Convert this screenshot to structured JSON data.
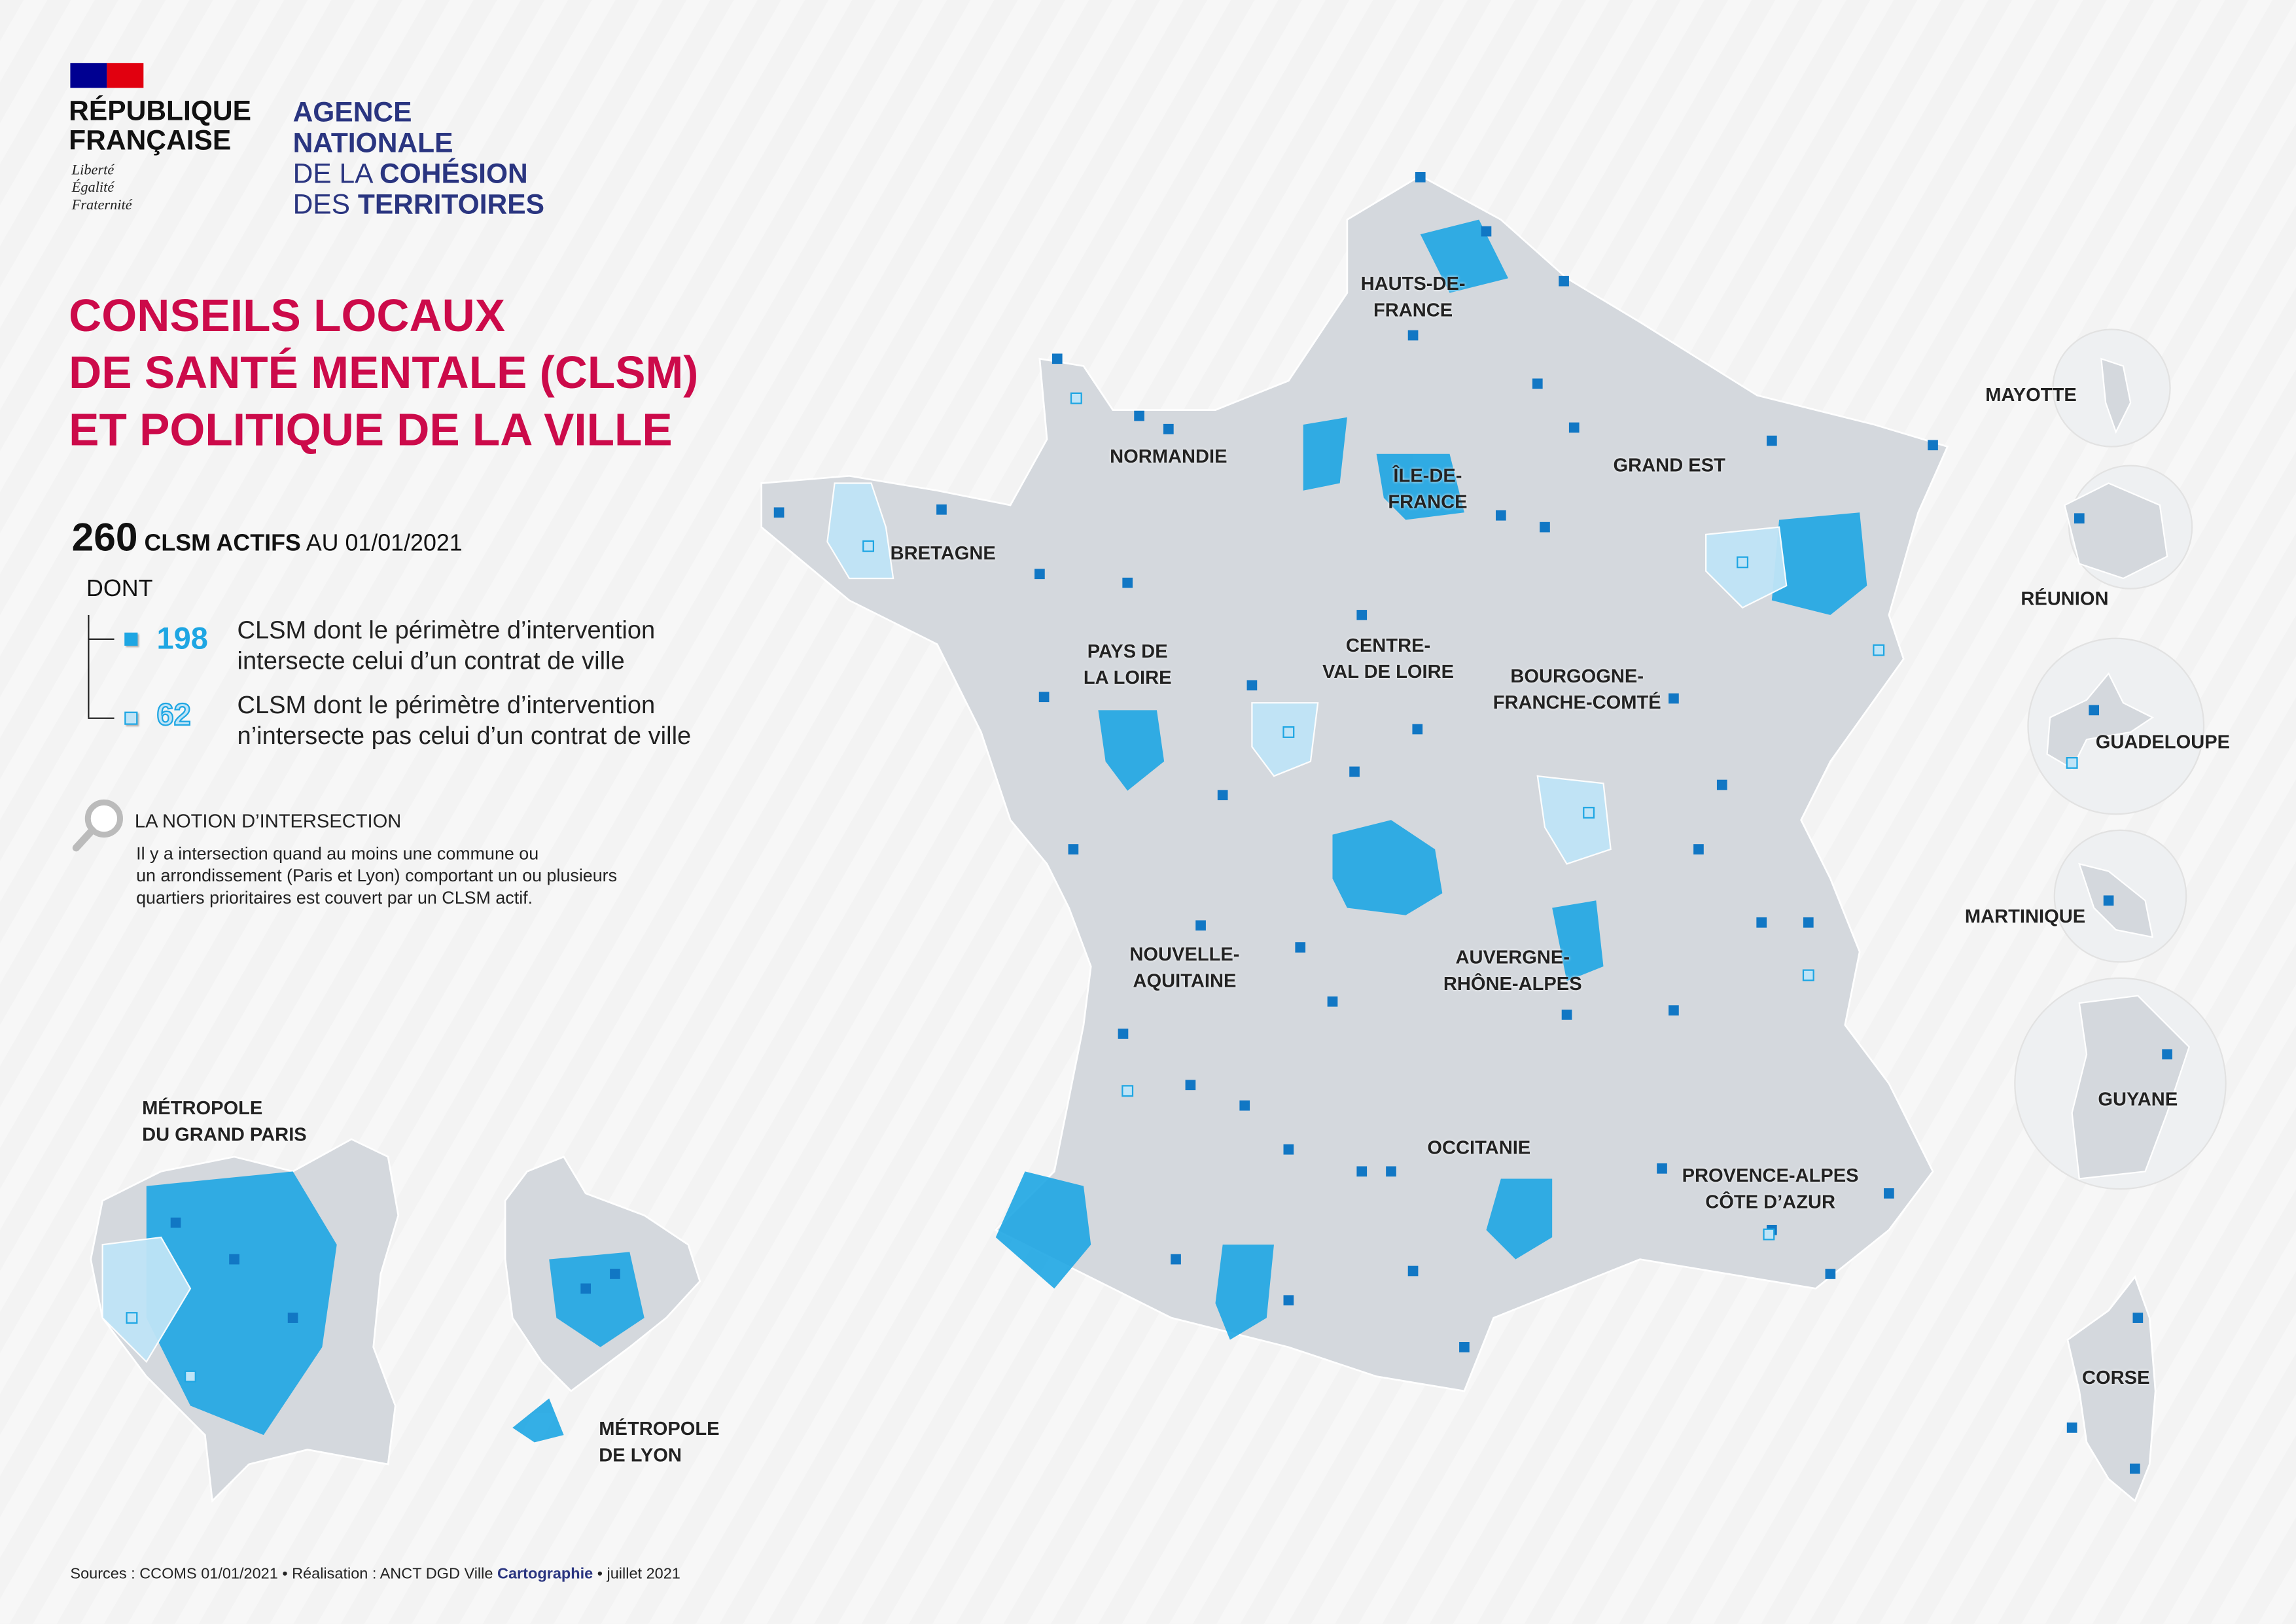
{
  "logos": {
    "republique": [
      "RÉPUBLIQUE",
      "FRANÇAISE"
    ],
    "devise": [
      "Liberté",
      "Égalité",
      "Fraternité"
    ],
    "anct": {
      "line1": "AGENCE",
      "line2": "NATIONALE",
      "line3a": "DE LA",
      "line3b": "COHÉSION",
      "line4a": "DES",
      "line4b": "TERRITOIRES"
    }
  },
  "title": [
    "CONSEILS LOCAUX",
    "DE SANTÉ MENTALE (CLSM)",
    "ET POLITIQUE DE LA VILLE"
  ],
  "summary": {
    "total": "260",
    "label_bold": "CLSM ACTIFS",
    "label": "AU 01/01/2021",
    "dont": "DONT"
  },
  "legend": [
    {
      "count": "198",
      "color": "#1ea6e3",
      "text": [
        "CLSM dont le périmètre d’intervention",
        "intersecte celui d’un contrat de ville"
      ]
    },
    {
      "count": "62",
      "color": "#bfe4f7",
      "text": [
        "CLSM dont le périmètre d’intervention",
        "n’intersecte pas celui d’un contrat de ville"
      ]
    }
  ],
  "notion": {
    "heading": "LA NOTION D’INTERSECTION",
    "text": [
      "Il y a intersection quand au moins une commune ou",
      "un arrondissement (Paris et Lyon) comportant un ou plusieurs",
      "quartiers prioritaires est couvert par un CLSM actif."
    ]
  },
  "regions": {
    "hdf": [
      "HAUTS-DE-",
      "FRANCE"
    ],
    "normandie": [
      "NORMANDIE"
    ],
    "idf": [
      "ÎLE-DE-",
      "FRANCE"
    ],
    "grand_est": [
      "GRAND EST"
    ],
    "bretagne": [
      "BRETAGNE"
    ],
    "pdl": [
      "PAYS DE",
      "LA LOIRE"
    ],
    "cvl": [
      "CENTRE-",
      "VAL DE LOIRE"
    ],
    "bfc": [
      "BOURGOGNE-",
      "FRANCHE-COMTÉ"
    ],
    "na": [
      "NOUVELLE-",
      "AQUITAINE"
    ],
    "ara": [
      "AUVERGNE-",
      "RHÔNE-ALPES"
    ],
    "occitanie": [
      "OCCITANIE"
    ],
    "paca": [
      "PROVENCE-ALPES",
      "CÔTE D’AZUR"
    ],
    "corse": [
      "CORSE"
    ],
    "mayotte": [
      "MAYOTTE"
    ],
    "reunion": [
      "RÉUNION"
    ],
    "guadeloupe": [
      "GUADELOUPE"
    ],
    "martinique": [
      "MARTINIQUE"
    ],
    "guyane": [
      "GUYANE"
    ],
    "paris": [
      "MÉTROPOLE",
      "DU GRAND PARIS"
    ],
    "lyon": [
      "MÉTROPOLE",
      "DE LYON"
    ]
  },
  "colors": {
    "intersect": "#1ea6e3",
    "no_intersect": "#bfe4f7",
    "land": "#d4d8dd",
    "title": "#cc0a4a",
    "anct": "#2a3580"
  },
  "footer": {
    "sources": "Sources : CCOMS 01/01/2021 • Réalisation : ANCT DGD Ville",
    "carto": "Cartographie",
    "date": "• juillet 2021"
  }
}
